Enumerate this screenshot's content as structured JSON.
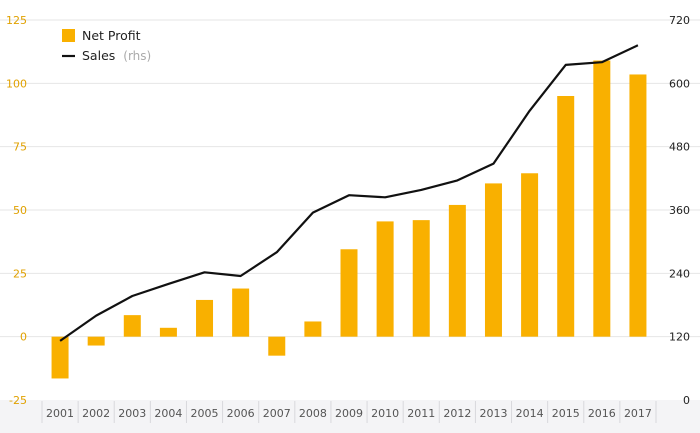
{
  "chart_data": {
    "type": "bar+line",
    "categories": [
      "2001",
      "2002",
      "2003",
      "2004",
      "2005",
      "2006",
      "2007",
      "2008",
      "2009",
      "2010",
      "2011",
      "2012",
      "2013",
      "2014",
      "2015",
      "2016",
      "2017"
    ],
    "series": [
      {
        "name": "Net Profit",
        "type": "bar",
        "axis": "left",
        "color": "#f9b000",
        "values": [
          -16.5,
          -3.5,
          8.5,
          3.5,
          14.5,
          19,
          -7.5,
          6,
          34.5,
          45.5,
          46,
          52,
          60.5,
          64.5,
          95,
          109,
          103.5
        ]
      },
      {
        "name": "Sales",
        "name_suffix": "(rhs)",
        "type": "line",
        "axis": "right",
        "color": "#111111",
        "values": [
          112,
          160,
          197,
          220,
          242,
          235,
          280,
          355,
          388,
          384,
          398,
          416,
          448,
          548,
          635,
          640,
          672
        ]
      }
    ],
    "y_left": {
      "ticks": [
        "125",
        "100",
        "75",
        "50",
        "25",
        "0",
        "-25"
      ],
      "ylim": [
        -25,
        125
      ]
    },
    "y_right": {
      "ticks": [
        "720",
        "600",
        "480",
        "360",
        "240",
        "120",
        "0"
      ],
      "ylim": [
        0,
        720
      ]
    },
    "grid": true,
    "legend_position": "top-left"
  }
}
